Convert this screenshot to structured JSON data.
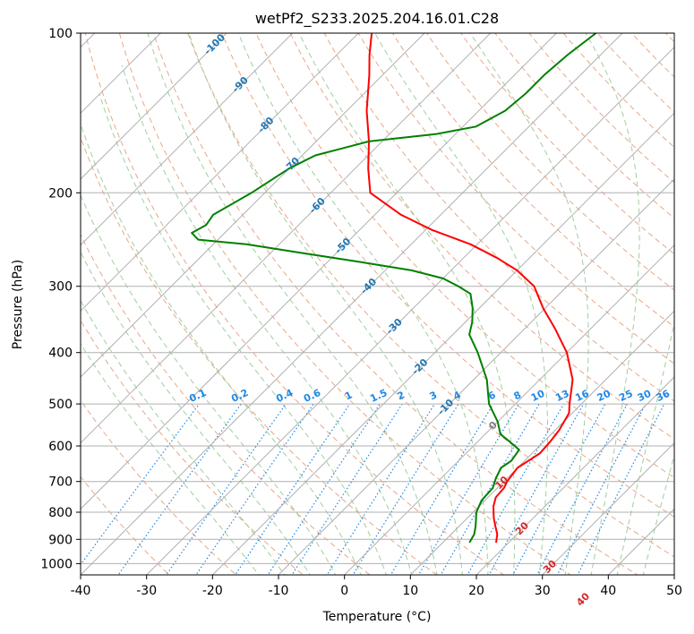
{
  "chart_data": {
    "type": "line",
    "title": "wetPf2_S233.2025.204.16.01.C28",
    "xlabel": "Temperature (°C)",
    "ylabel": "Pressure (hPa)",
    "xlim": [
      -40,
      50
    ],
    "ylim": [
      1050,
      100
    ],
    "y_scale": "log",
    "skew": 45,
    "grid": true,
    "xticks": [
      "-40",
      "-30",
      "-20",
      "-10",
      "0",
      "10",
      "20",
      "30",
      "40",
      "50"
    ],
    "yticks": [
      "1000",
      "900",
      "800",
      "700",
      "600",
      "500",
      "400",
      "300",
      "200",
      "100"
    ],
    "series": [
      {
        "color": "#ff0000",
        "points": [
          [
            910,
            18.0
          ],
          [
            880,
            17.0
          ],
          [
            850,
            15.5
          ],
          [
            820,
            14.0
          ],
          [
            780,
            12.2
          ],
          [
            750,
            11.2
          ],
          [
            720,
            11.0
          ],
          [
            700,
            10.5
          ],
          [
            660,
            10.0
          ],
          [
            620,
            11.2
          ],
          [
            590,
            11.0
          ],
          [
            560,
            10.6
          ],
          [
            520,
            9.5
          ],
          [
            500,
            8.2
          ],
          [
            450,
            5.0
          ],
          [
            400,
            0.0
          ],
          [
            360,
            -5.5
          ],
          [
            330,
            -10.3
          ],
          [
            300,
            -15.0
          ],
          [
            280,
            -20.0
          ],
          [
            265,
            -25.0
          ],
          [
            250,
            -31.0
          ],
          [
            235,
            -39.0
          ],
          [
            220,
            -46.0
          ],
          [
            200,
            -54.0
          ],
          [
            180,
            -58.0
          ],
          [
            160,
            -62.0
          ],
          [
            140,
            -67.0
          ],
          [
            120,
            -72.0
          ],
          [
            110,
            -75.0
          ],
          [
            100,
            -78.0
          ]
        ]
      },
      {
        "color": "#008000",
        "points": [
          [
            910,
            14.0
          ],
          [
            880,
            13.5
          ],
          [
            850,
            12.5
          ],
          [
            800,
            10.5
          ],
          [
            760,
            9.5
          ],
          [
            720,
            9.3
          ],
          [
            690,
            8.3
          ],
          [
            660,
            7.5
          ],
          [
            640,
            8.0
          ],
          [
            610,
            7.5
          ],
          [
            590,
            5.0
          ],
          [
            570,
            2.3
          ],
          [
            540,
            0.0
          ],
          [
            500,
            -4.0
          ],
          [
            450,
            -8.0
          ],
          [
            400,
            -13.5
          ],
          [
            370,
            -17.5
          ],
          [
            350,
            -19.0
          ],
          [
            330,
            -21.0
          ],
          [
            310,
            -23.5
          ],
          [
            300,
            -26.5
          ],
          [
            290,
            -30.0
          ],
          [
            280,
            -36.0
          ],
          [
            270,
            -45.0
          ],
          [
            260,
            -55.0
          ],
          [
            250,
            -65.0
          ],
          [
            245,
            -73.0
          ],
          [
            238,
            -75.0
          ],
          [
            230,
            -74.0
          ],
          [
            220,
            -74.5
          ],
          [
            200,
            -72.0
          ],
          [
            180,
            -70.0
          ],
          [
            170,
            -68.0
          ],
          [
            160,
            -62.0
          ],
          [
            155,
            -53.0
          ],
          [
            150,
            -48.0
          ],
          [
            140,
            -46.0
          ],
          [
            130,
            -45.5
          ],
          [
            120,
            -45.5
          ],
          [
            110,
            -45.0
          ],
          [
            100,
            -44.0
          ]
        ]
      }
    ],
    "isotherm_labels": [
      "-100",
      "-90",
      "-80",
      "-70",
      "-60",
      "-50",
      "-40",
      "-30",
      "-20",
      "-10",
      "0",
      "10",
      "20",
      "30",
      "40"
    ],
    "mixing_ratio_labels": [
      "0.1",
      "0.2",
      "0.4",
      "0.6",
      "1",
      "1.5",
      "2",
      "3",
      "4",
      "6",
      "8",
      "10",
      "13",
      "16",
      "20",
      "25",
      "30",
      "36"
    ]
  },
  "colors": {
    "temperature": "#ff0000",
    "dewpoint": "#008000",
    "isotherm_label_cold": "#1f77b4",
    "isotherm_label_zero": "#7f7f7f",
    "isotherm_label_warm": "#d62728",
    "mixing_ratio": "#1e88e5",
    "dry_adiabat": "#e8a888",
    "moist_adiabat": "#9fcf9f",
    "grid": "#b0b0b0"
  }
}
